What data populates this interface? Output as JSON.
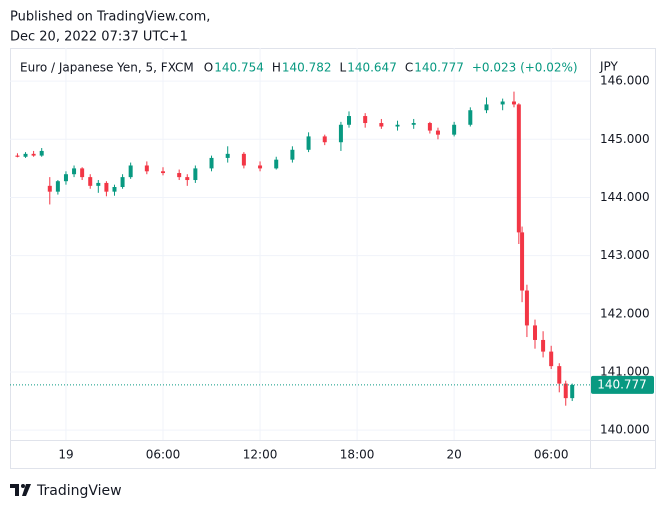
{
  "header": {
    "published": "Published on TradingView.com,",
    "timestamp": "Dec 20, 2022 07:37 UTC+1"
  },
  "footer": {
    "brand": "TradingView"
  },
  "chart_data": {
    "type": "candlestick",
    "title": "Euro / Japanese Yen, 5, FXCM",
    "legend_ohlc": [
      {
        "label": "O",
        "value": 140.754
      },
      {
        "label": "H",
        "value": 140.782
      },
      {
        "label": "L",
        "value": 140.647
      },
      {
        "label": "C",
        "value": 140.777
      }
    ],
    "change": "+0.023 (+0.02%)",
    "y_axis_label": "JPY",
    "last_price": 140.777,
    "up_color": "#089981",
    "down_color": "#f23645",
    "grid": true,
    "xlim": [
      -3.46,
      32.4
    ],
    "xticks": [
      {
        "value": 0,
        "label": "19"
      },
      {
        "value": 6,
        "label": "06:00"
      },
      {
        "value": 12,
        "label": "12:00"
      },
      {
        "value": 18,
        "label": "18:00"
      },
      {
        "value": 24,
        "label": "20"
      },
      {
        "value": 30,
        "label": "06:00"
      }
    ],
    "ylim": [
      139.83,
      146.57
    ],
    "yticks": [
      {
        "value": 140,
        "label": "140.000"
      },
      {
        "value": 141,
        "label": "141.000"
      },
      {
        "value": 142,
        "label": "142.000"
      },
      {
        "value": 143,
        "label": "143.000"
      },
      {
        "value": 144,
        "label": "144.000"
      },
      {
        "value": 145,
        "label": "145.000"
      },
      {
        "value": 146,
        "label": "146.000"
      }
    ],
    "x": [
      -3.0,
      -2.5,
      -2.0,
      -1.5,
      -1.0,
      -0.5,
      0,
      0.5,
      1.0,
      1.5,
      2.0,
      2.5,
      3.0,
      3.5,
      4.0,
      5.0,
      6.0,
      7.0,
      7.5,
      8.0,
      9.0,
      10.0,
      11.0,
      12.0,
      13.0,
      14.0,
      15.0,
      16.0,
      17.0,
      17.5,
      18.5,
      19.5,
      20.5,
      21.5,
      22.5,
      23.0,
      24.0,
      25.0,
      26.0,
      27.0,
      27.7,
      28.0,
      28.2,
      28.5,
      29.0,
      29.5,
      30.0,
      30.5,
      30.9,
      31.3
    ],
    "open": [
      144.72,
      144.7,
      144.75,
      144.72,
      144.2,
      144.1,
      144.28,
      144.4,
      144.5,
      144.35,
      144.2,
      144.25,
      144.1,
      144.18,
      144.35,
      144.55,
      144.45,
      144.42,
      144.35,
      144.3,
      144.5,
      144.68,
      144.75,
      144.55,
      144.5,
      144.65,
      144.82,
      145.05,
      144.95,
      145.25,
      145.4,
      145.28,
      145.22,
      145.25,
      145.28,
      145.15,
      145.08,
      145.25,
      145.5,
      145.6,
      145.65,
      145.6,
      143.4,
      142.4,
      141.8,
      141.55,
      141.35,
      141.1,
      140.8,
      140.55
    ],
    "high": [
      144.76,
      144.78,
      144.8,
      144.85,
      144.35,
      144.3,
      144.45,
      144.55,
      144.52,
      144.4,
      144.3,
      144.28,
      144.22,
      144.4,
      144.6,
      144.62,
      144.52,
      144.48,
      144.4,
      144.55,
      144.72,
      144.88,
      144.78,
      144.62,
      144.7,
      144.88,
      145.12,
      145.08,
      145.3,
      145.48,
      145.45,
      145.35,
      145.32,
      145.35,
      145.3,
      145.2,
      145.3,
      145.55,
      145.72,
      145.7,
      145.82,
      145.62,
      143.5,
      142.5,
      141.9,
      141.7,
      141.45,
      141.15,
      140.85,
      140.8
    ],
    "low": [
      144.69,
      144.68,
      144.7,
      144.7,
      143.88,
      144.05,
      144.22,
      144.35,
      144.3,
      144.15,
      144.08,
      144.02,
      144.03,
      144.15,
      144.32,
      144.4,
      144.38,
      144.3,
      144.2,
      144.25,
      144.45,
      144.6,
      144.5,
      144.45,
      144.48,
      144.6,
      144.78,
      144.9,
      144.8,
      145.2,
      145.2,
      145.18,
      145.15,
      145.18,
      145.1,
      145.0,
      145.05,
      145.22,
      145.45,
      145.5,
      145.55,
      143.2,
      142.2,
      141.6,
      141.4,
      141.25,
      141.05,
      140.65,
      140.42,
      140.5
    ],
    "close": [
      144.7,
      144.75,
      144.72,
      144.8,
      144.1,
      144.28,
      144.4,
      144.5,
      144.35,
      144.2,
      144.25,
      144.1,
      144.18,
      144.35,
      144.55,
      144.45,
      144.42,
      144.35,
      144.3,
      144.5,
      144.68,
      144.75,
      144.55,
      144.5,
      144.65,
      144.82,
      145.05,
      144.95,
      145.25,
      145.4,
      145.28,
      145.22,
      145.25,
      145.28,
      145.15,
      145.08,
      145.25,
      145.5,
      145.6,
      145.65,
      145.6,
      143.4,
      142.4,
      141.8,
      141.55,
      141.35,
      141.1,
      140.8,
      140.55,
      140.777
    ]
  }
}
